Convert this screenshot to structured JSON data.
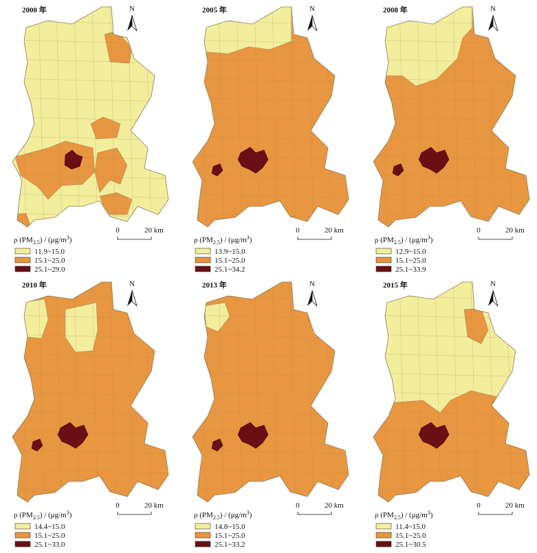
{
  "legend_title": {
    "pre": "ρ (PM",
    "sub": "2.5",
    "mid": ") / (μg/m",
    "sup": "3",
    "post": ")"
  },
  "north": "N",
  "scale": {
    "start": "0",
    "end": "20 km"
  },
  "panels": [
    {
      "title": "2000 年",
      "legend": [
        {
          "label": "11.9~15.0",
          "color": "#f3ee9c"
        },
        {
          "label": "15.1~25.0",
          "color": "#e8963f"
        },
        {
          "label": "25.1~29.0",
          "color": "#6a1014"
        }
      ]
    },
    {
      "title": "2005 年",
      "legend": [
        {
          "label": "13.9~15.0",
          "color": "#f3ee9c"
        },
        {
          "label": "15.1~25.0",
          "color": "#e8963f"
        },
        {
          "label": "25.1~34.2",
          "color": "#6a1014"
        }
      ]
    },
    {
      "title": "2008 年",
      "legend": [
        {
          "label": "12.9~15.0",
          "color": "#f3ee9c"
        },
        {
          "label": "15.1~25.0",
          "color": "#e8963f"
        },
        {
          "label": "25.1~33.9",
          "color": "#6a1014"
        }
      ]
    },
    {
      "title": "2010 年",
      "legend": [
        {
          "label": "14.4~15.0",
          "color": "#f3ee9c"
        },
        {
          "label": "15.1~25.0",
          "color": "#e8963f"
        },
        {
          "label": "25.1~33.0",
          "color": "#6a1014"
        }
      ]
    },
    {
      "title": "2013 年",
      "legend": [
        {
          "label": "14.8~15.0",
          "color": "#f3ee9c"
        },
        {
          "label": "15.1~25.0",
          "color": "#e8963f"
        },
        {
          "label": "25.1~33.2",
          "color": "#6a1014"
        }
      ]
    },
    {
      "title": "2015 年",
      "legend": [
        {
          "label": "11.4~15.0",
          "color": "#f3ee9c"
        },
        {
          "label": "15.1~25.0",
          "color": "#e8963f"
        },
        {
          "label": "25.1~30.5",
          "color": "#6a1014"
        }
      ]
    }
  ]
}
